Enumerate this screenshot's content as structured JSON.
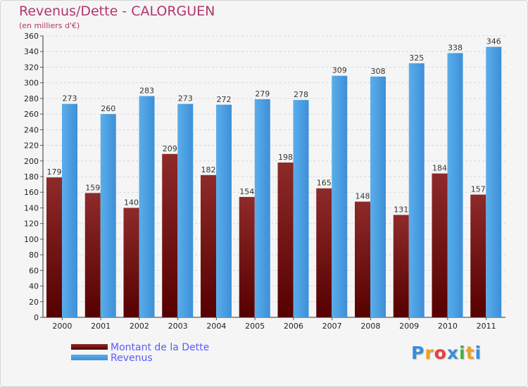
{
  "chart_data": {
    "type": "bar",
    "title": "Revenus/Dette - CALORGUEN",
    "subtitle": "(en milliers d'€)",
    "categories": [
      "2000",
      "2001",
      "2002",
      "2003",
      "2004",
      "2005",
      "2006",
      "2007",
      "2008",
      "2009",
      "2010",
      "2011"
    ],
    "series": [
      {
        "name": "Montant de la Dette",
        "values": [
          179,
          159,
          140,
          209,
          182,
          154,
          198,
          165,
          148,
          131,
          184,
          157
        ],
        "color": "#7a1414"
      },
      {
        "name": "Revenus",
        "values": [
          273,
          260,
          283,
          273,
          272,
          279,
          278,
          309,
          308,
          325,
          338,
          346
        ],
        "color": "#4aa0e6"
      }
    ],
    "ylim": [
      0,
      360
    ],
    "yticks": [
      0,
      20,
      40,
      60,
      80,
      100,
      120,
      140,
      160,
      180,
      200,
      220,
      240,
      260,
      280,
      300,
      320,
      340,
      360
    ],
    "grid": true,
    "legend_position": "bottom-left"
  },
  "branding": {
    "logo_letters": [
      "P",
      "r",
      "o",
      "x",
      "i",
      "t",
      "i"
    ],
    "logo_colors": [
      "#3b8ed8",
      "#f0a020",
      "#e84040",
      "#3b8ed8",
      "#40b040",
      "#f0a020",
      "#3b8ed8"
    ]
  },
  "colors": {
    "title": "#b2356b",
    "legend_text": "#5a5aff"
  }
}
